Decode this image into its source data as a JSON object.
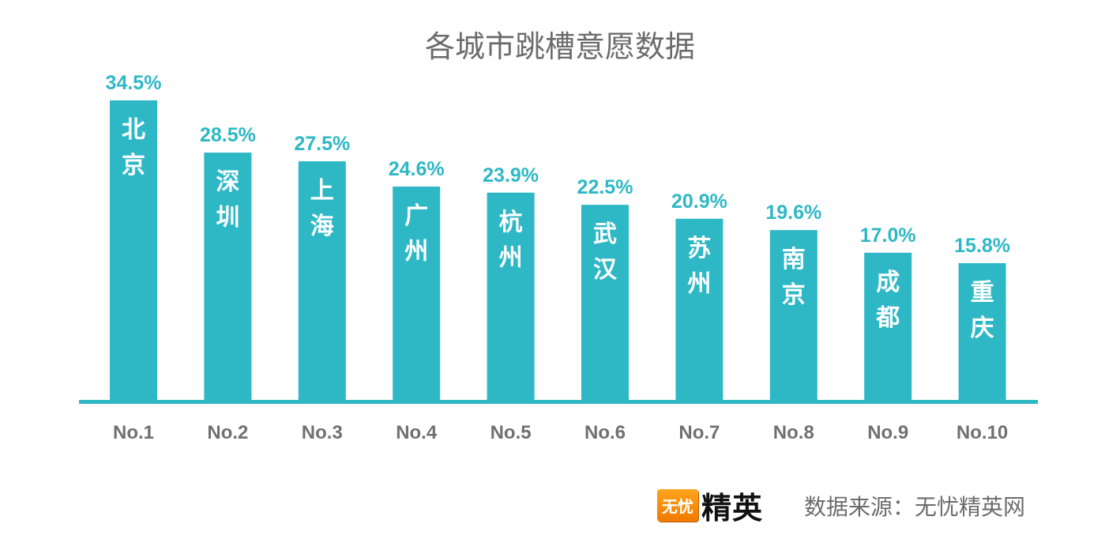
{
  "chart_data": {
    "type": "bar",
    "title": "各城市跳槽意愿数据",
    "categories": [
      "No.1",
      "No.2",
      "No.3",
      "No.4",
      "No.5",
      "No.6",
      "No.7",
      "No.8",
      "No.9",
      "No.10"
    ],
    "cities": [
      "北京",
      "深圳",
      "上海",
      "广州",
      "杭州",
      "武汉",
      "苏州",
      "南京",
      "成都",
      "重庆"
    ],
    "values": [
      34.5,
      28.5,
      27.5,
      24.6,
      23.9,
      22.5,
      20.9,
      19.6,
      17.0,
      15.8
    ],
    "value_labels": [
      "34.5%",
      "28.5%",
      "27.5%",
      "24.6%",
      "23.9%",
      "22.5%",
      "20.9%",
      "19.6%",
      "17.0%",
      "15.8%"
    ],
    "unit": "%",
    "ylim": [
      0,
      34.5
    ],
    "grid": false,
    "colors": {
      "bar": "#2eb8c6",
      "axis": "#2eb8c6",
      "value_label": "#2eb8c6",
      "category_label": "#707070"
    }
  },
  "footer": {
    "logo_badge": "无忧",
    "logo_text": "精英",
    "source": "数据来源：无忧精英网"
  }
}
